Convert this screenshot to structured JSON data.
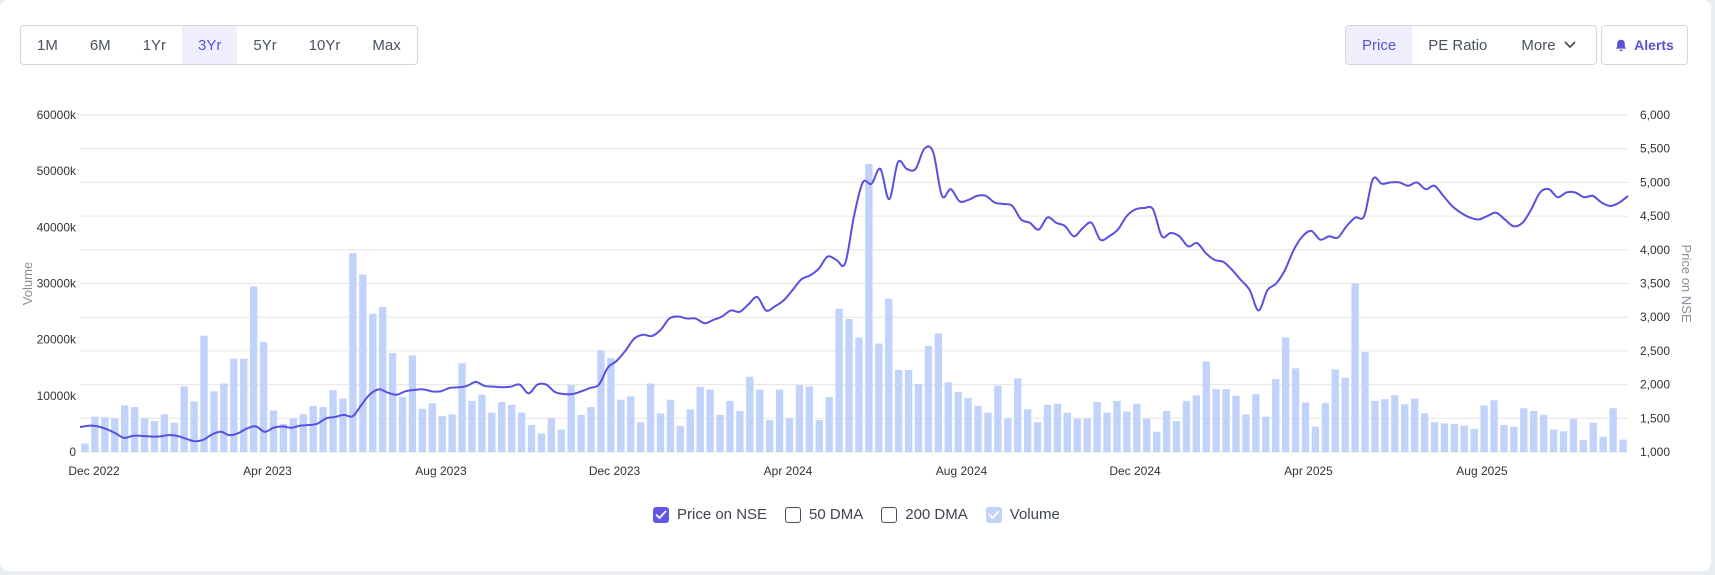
{
  "range_tabs": [
    {
      "label": "1M",
      "active": false
    },
    {
      "label": "6M",
      "active": false
    },
    {
      "label": "1Yr",
      "active": false
    },
    {
      "label": "3Yr",
      "active": true
    },
    {
      "label": "5Yr",
      "active": false
    },
    {
      "label": "10Yr",
      "active": false
    },
    {
      "label": "Max",
      "active": false
    }
  ],
  "view_tabs": {
    "price": "Price",
    "pe_ratio": "PE Ratio",
    "more": "More"
  },
  "alerts_label": "Alerts",
  "colors": {
    "price_line": "#5a50e0",
    "volume_bar": "#c1d2fb",
    "accent": "#5b52d6"
  },
  "icons": {
    "bell": "bell-icon",
    "chevron": "chevron-down-icon",
    "check": "check-icon"
  },
  "legend": [
    {
      "label": "Price on NSE",
      "checked": true,
      "style": "dark"
    },
    {
      "label": "50 DMA",
      "checked": false,
      "style": "none"
    },
    {
      "label": "200 DMA",
      "checked": false,
      "style": "none"
    },
    {
      "label": "Volume",
      "checked": true,
      "style": "light"
    }
  ],
  "chart_data": {
    "type": "bar",
    "xlabel": "",
    "ylabel": "Volume",
    "y2label": "Price on NSE",
    "ylim": [
      0,
      60000
    ],
    "y2lim": [
      1000,
      6000
    ],
    "y_ticks": [
      "0",
      "10000k",
      "20000k",
      "30000k",
      "40000k",
      "50000k",
      "60000k"
    ],
    "y2_ticks": [
      "1,000",
      "1,500",
      "2,000",
      "2,500",
      "3,000",
      "3,500",
      "4,000",
      "4,500",
      "5,000",
      "5,500",
      "6,000"
    ],
    "x_ticks": [
      "Dec 2022",
      "Apr 2023",
      "Aug 2023",
      "Dec 2023",
      "Apr 2024",
      "Aug 2024",
      "Dec 2024",
      "Apr 2025",
      "Aug 2025"
    ],
    "grid": true,
    "legend_position": "bottom",
    "series": [
      {
        "name": "Volume",
        "type": "bar",
        "unit": "thousands",
        "values": [
          1500,
          6300,
          6200,
          6000,
          8300,
          8000,
          6000,
          5500,
          6700,
          5200,
          11700,
          9000,
          20700,
          10800,
          12200,
          16600,
          16600,
          29500,
          19600,
          7400,
          5000,
          6000,
          6700,
          8200,
          8000,
          11000,
          9500,
          35400,
          31600,
          24600,
          25800,
          17600,
          9800,
          17200,
          7700,
          8700,
          6400,
          6700,
          15800,
          9100,
          10200,
          7000,
          8900,
          8400,
          7000,
          4800,
          3300,
          6000,
          4000,
          11900,
          6600,
          8000,
          18100,
          16700,
          9300,
          9900,
          5300,
          12200,
          6900,
          9300,
          4600,
          7600,
          11600,
          11100,
          6600,
          9100,
          7300,
          13400,
          11100,
          5700,
          11100,
          6000,
          11900,
          11700,
          5700,
          9800,
          25500,
          23700,
          20400,
          51300,
          19300,
          27300,
          14600,
          14600,
          12100,
          18900,
          21100,
          12400,
          10700,
          9600,
          8200,
          7000,
          11800,
          6000,
          13100,
          7600,
          5300,
          8400,
          8600,
          7000,
          5900,
          6000,
          8900,
          7000,
          9100,
          7200,
          8600,
          5900,
          3600,
          7300,
          5500,
          9100,
          10100,
          16100,
          11200,
          11200,
          10000,
          6700,
          10300,
          6300,
          13000,
          20400,
          14900,
          8800,
          4500,
          8700,
          14700,
          13200,
          30000,
          17800,
          9100,
          9400,
          10100,
          8500,
          9500,
          6900,
          5300,
          5100,
          5000,
          4700,
          4100,
          8300,
          9200,
          4800,
          4500,
          7800,
          7300,
          6600,
          4000,
          3700,
          5900,
          2100,
          5200,
          2700,
          7800,
          2200
        ]
      },
      {
        "name": "Price on NSE",
        "type": "line",
        "values": [
          1370,
          1390,
          1380,
          1340,
          1280,
          1210,
          1240,
          1240,
          1230,
          1230,
          1250,
          1240,
          1200,
          1160,
          1180,
          1260,
          1300,
          1250,
          1280,
          1350,
          1380,
          1300,
          1360,
          1380,
          1360,
          1390,
          1400,
          1420,
          1500,
          1520,
          1550,
          1530,
          1700,
          1860,
          1930,
          1880,
          1850,
          1900,
          1920,
          1930,
          1900,
          1900,
          1950,
          1960,
          1980,
          2040,
          1980,
          1970,
          1960,
          1970,
          2000,
          1870,
          2000,
          2000,
          1890,
          1860,
          1860,
          1900,
          1950,
          2000,
          2250,
          2350,
          2500,
          2680,
          2740,
          2720,
          2810,
          2980,
          3010,
          2980,
          2980,
          2910,
          2960,
          3010,
          3100,
          3080,
          3190,
          3300,
          3100,
          3160,
          3250,
          3400,
          3560,
          3620,
          3720,
          3900,
          3850,
          3800,
          4500,
          5000,
          4980,
          5200,
          4750,
          5300,
          5200,
          5200,
          5500,
          5450,
          4800,
          4900,
          4720,
          4740,
          4800,
          4800,
          4700,
          4680,
          4650,
          4450,
          4400,
          4300,
          4480,
          4400,
          4350,
          4200,
          4320,
          4400,
          4150,
          4200,
          4300,
          4500,
          4600,
          4620,
          4600,
          4200,
          4250,
          4200,
          4050,
          4100,
          3950,
          3850,
          3820,
          3700,
          3550,
          3400,
          3100,
          3400,
          3500,
          3700,
          4000,
          4200,
          4280,
          4150,
          4200,
          4180,
          4350,
          4480,
          4500,
          5050,
          4980,
          5000,
          5000,
          4950,
          5000,
          4900,
          4950,
          4800,
          4650,
          4550,
          4480,
          4450,
          4500,
          4550,
          4450,
          4350,
          4400,
          4600,
          4850,
          4900,
          4780,
          4850,
          4850,
          4780,
          4800,
          4700,
          4650,
          4700,
          4800
        ]
      }
    ]
  }
}
